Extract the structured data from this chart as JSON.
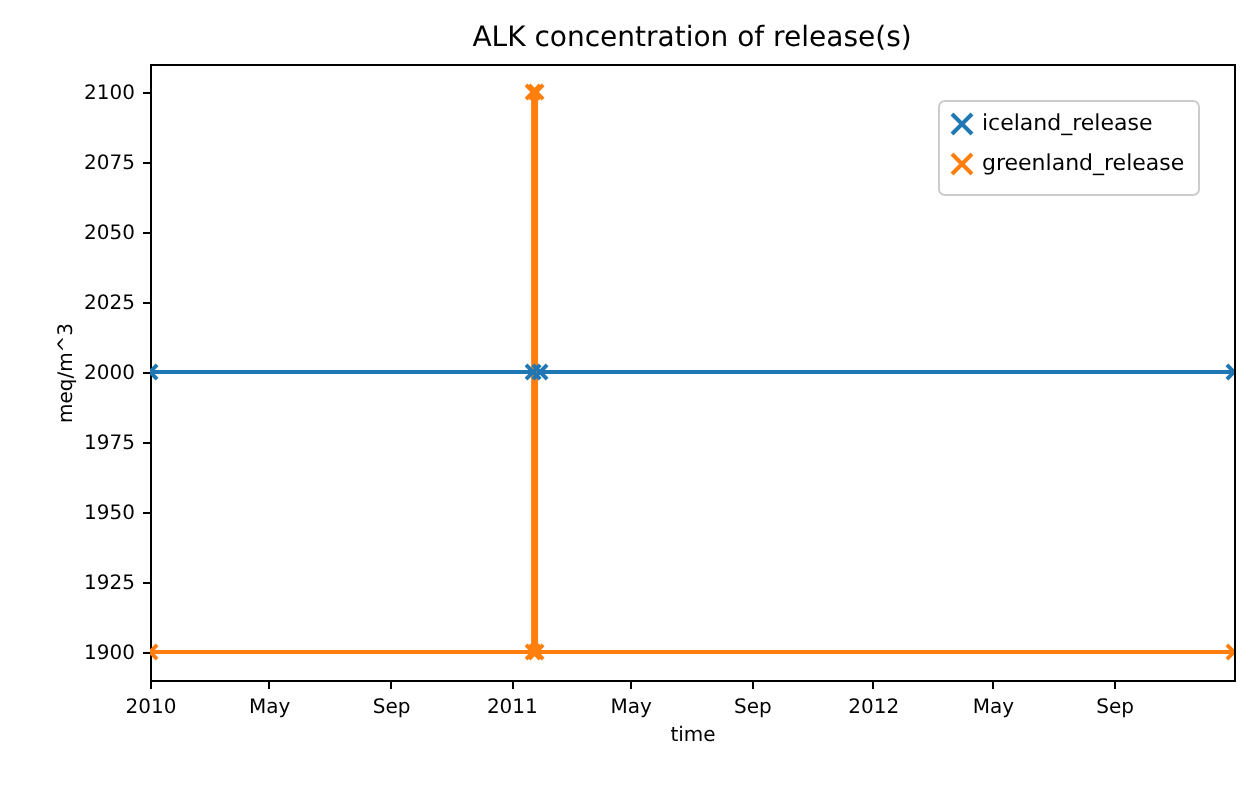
{
  "chart_data": {
    "type": "line",
    "title": "ALK concentration of release(s)",
    "xlabel": "time",
    "ylabel": "meq/m^3",
    "series": [
      {
        "name": "iceland_release",
        "color": "#1f77b4",
        "x": [
          "2010-01-01",
          "2011-01-23",
          "2011-01-30",
          "2012-12-31"
        ],
        "values": [
          2000,
          2000,
          2000,
          2000
        ]
      },
      {
        "name": "greenland_release",
        "color": "#ff7f0e",
        "x": [
          "2010-01-01",
          "2011-01-23",
          "2011-01-23",
          "2011-01-26",
          "2011-01-26",
          "2012-12-31"
        ],
        "values": [
          1900,
          1900,
          2100,
          2100,
          1900,
          1900
        ]
      }
    ],
    "xlim": [
      "2010-01-01",
      "2012-12-31"
    ],
    "xticks": [
      {
        "value": "2010-01-01",
        "label": "2010"
      },
      {
        "value": "2010-05-01",
        "label": "May"
      },
      {
        "value": "2010-09-01",
        "label": "Sep"
      },
      {
        "value": "2011-01-01",
        "label": "2011"
      },
      {
        "value": "2011-05-01",
        "label": "May"
      },
      {
        "value": "2011-09-01",
        "label": "Sep"
      },
      {
        "value": "2012-01-01",
        "label": "2012"
      },
      {
        "value": "2012-05-01",
        "label": "May"
      },
      {
        "value": "2012-09-01",
        "label": "Sep"
      }
    ],
    "ylim": [
      1890,
      2110
    ],
    "yticks": [
      1900,
      1925,
      1950,
      1975,
      2000,
      2025,
      2050,
      2075,
      2100
    ],
    "grid": false,
    "legend": "top right",
    "marker": "cross",
    "line_style": "solid"
  }
}
